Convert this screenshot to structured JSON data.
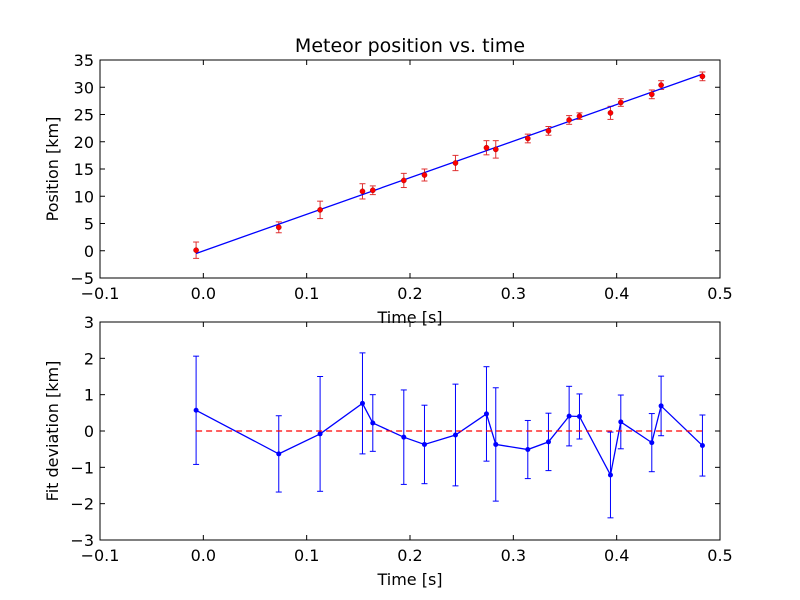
{
  "chart_data": [
    {
      "type": "scatter",
      "title": "Meteor position vs. time",
      "xlabel": "Time [s]",
      "ylabel": "Position [km]",
      "xlim": [
        -0.1,
        0.5
      ],
      "ylim": [
        -5,
        35
      ],
      "xticks": [
        "−0.1",
        "0.0",
        "0.1",
        "0.2",
        "0.3",
        "0.4",
        "0.5"
      ],
      "yticks": [
        "−5",
        "0",
        "5",
        "10",
        "15",
        "20",
        "25",
        "30",
        "35"
      ],
      "grid": false,
      "series": [
        {
          "kind": "points-with-errorbars",
          "color": "#ff0000",
          "errcolor": "#e03030",
          "x": [
            -0.007,
            0.073,
            0.113,
            0.154,
            0.164,
            0.194,
            0.214,
            0.244,
            0.274,
            0.283,
            0.314,
            0.334,
            0.354,
            0.364,
            0.394,
            0.404,
            0.434,
            0.443,
            0.483
          ],
          "y": [
            0.1,
            4.3,
            7.5,
            10.9,
            11.1,
            12.9,
            13.9,
            16.1,
            18.9,
            18.6,
            20.6,
            22.0,
            24.0,
            24.7,
            25.3,
            27.2,
            28.7,
            30.4,
            32.0
          ],
          "err": [
            1.5,
            1.0,
            1.6,
            1.4,
            0.8,
            1.3,
            1.1,
            1.4,
            1.3,
            1.6,
            0.8,
            0.8,
            0.8,
            0.6,
            1.2,
            0.7,
            0.8,
            0.8,
            0.8
          ]
        },
        {
          "kind": "fit-line",
          "color": "#0000ff",
          "x": [
            -0.007,
            0.483
          ],
          "y": [
            -0.5,
            32.4
          ]
        }
      ]
    },
    {
      "type": "line",
      "title": "",
      "xlabel": "Time [s]",
      "ylabel": "Fit deviation [km]",
      "xlim": [
        -0.1,
        0.5
      ],
      "ylim": [
        -3,
        3
      ],
      "xticks": [
        "−0.1",
        "0.0",
        "0.1",
        "0.2",
        "0.3",
        "0.4",
        "0.5"
      ],
      "yticks": [
        "−3",
        "−2",
        "−1",
        "0",
        "1",
        "2",
        "3"
      ],
      "grid": false,
      "series": [
        {
          "kind": "line-with-errorbars",
          "color": "#0000ff",
          "x": [
            -0.007,
            0.073,
            0.113,
            0.154,
            0.164,
            0.194,
            0.214,
            0.244,
            0.274,
            0.283,
            0.314,
            0.334,
            0.354,
            0.364,
            0.394,
            0.404,
            0.434,
            0.443,
            0.483
          ],
          "y": [
            0.57,
            -0.63,
            -0.08,
            0.76,
            0.22,
            -0.17,
            -0.37,
            -0.11,
            0.47,
            -0.37,
            -0.51,
            -0.3,
            0.41,
            0.4,
            -1.21,
            0.25,
            -0.32,
            0.69,
            -0.4
          ],
          "err": [
            1.49,
            1.05,
            1.58,
            1.39,
            0.78,
            1.3,
            1.08,
            1.4,
            1.3,
            1.56,
            0.8,
            0.79,
            0.82,
            0.62,
            1.18,
            0.74,
            0.8,
            0.82,
            0.84
          ]
        },
        {
          "kind": "zero-line",
          "color": "#ff0000",
          "dashed": true,
          "x": [
            -0.007,
            0.483
          ],
          "y": [
            0,
            0
          ]
        }
      ]
    }
  ]
}
